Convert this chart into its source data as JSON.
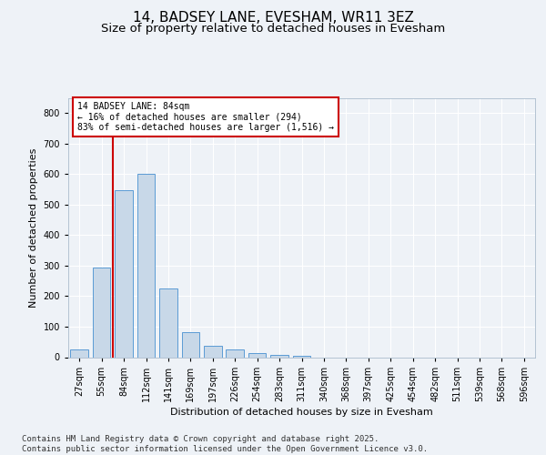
{
  "title": "14, BADSEY LANE, EVESHAM, WR11 3EZ",
  "subtitle": "Size of property relative to detached houses in Evesham",
  "xlabel": "Distribution of detached houses by size in Evesham",
  "ylabel": "Number of detached properties",
  "categories": [
    "27sqm",
    "55sqm",
    "84sqm",
    "112sqm",
    "141sqm",
    "169sqm",
    "197sqm",
    "226sqm",
    "254sqm",
    "283sqm",
    "311sqm",
    "340sqm",
    "368sqm",
    "397sqm",
    "425sqm",
    "454sqm",
    "482sqm",
    "511sqm",
    "539sqm",
    "568sqm",
    "596sqm"
  ],
  "values": [
    25,
    293,
    547,
    600,
    225,
    82,
    38,
    25,
    12,
    8,
    5,
    0,
    0,
    0,
    0,
    0,
    0,
    0,
    0,
    0,
    0
  ],
  "bar_color": "#c8d8e8",
  "bar_edge_color": "#5b9bd5",
  "vline_color": "#cc0000",
  "vline_x": 1.5,
  "annotation_text": "14 BADSEY LANE: 84sqm\n← 16% of detached houses are smaller (294)\n83% of semi-detached houses are larger (1,516) →",
  "annotation_box_color": "#cc0000",
  "ylim": [
    0,
    850
  ],
  "yticks": [
    0,
    100,
    200,
    300,
    400,
    500,
    600,
    700,
    800
  ],
  "background_color": "#eef2f7",
  "plot_bg_color": "#eef2f7",
  "grid_color": "#ffffff",
  "footer": "Contains HM Land Registry data © Crown copyright and database right 2025.\nContains public sector information licensed under the Open Government Licence v3.0.",
  "title_fontsize": 11,
  "subtitle_fontsize": 9.5,
  "axis_label_fontsize": 8,
  "tick_fontsize": 7,
  "footer_fontsize": 6.5
}
